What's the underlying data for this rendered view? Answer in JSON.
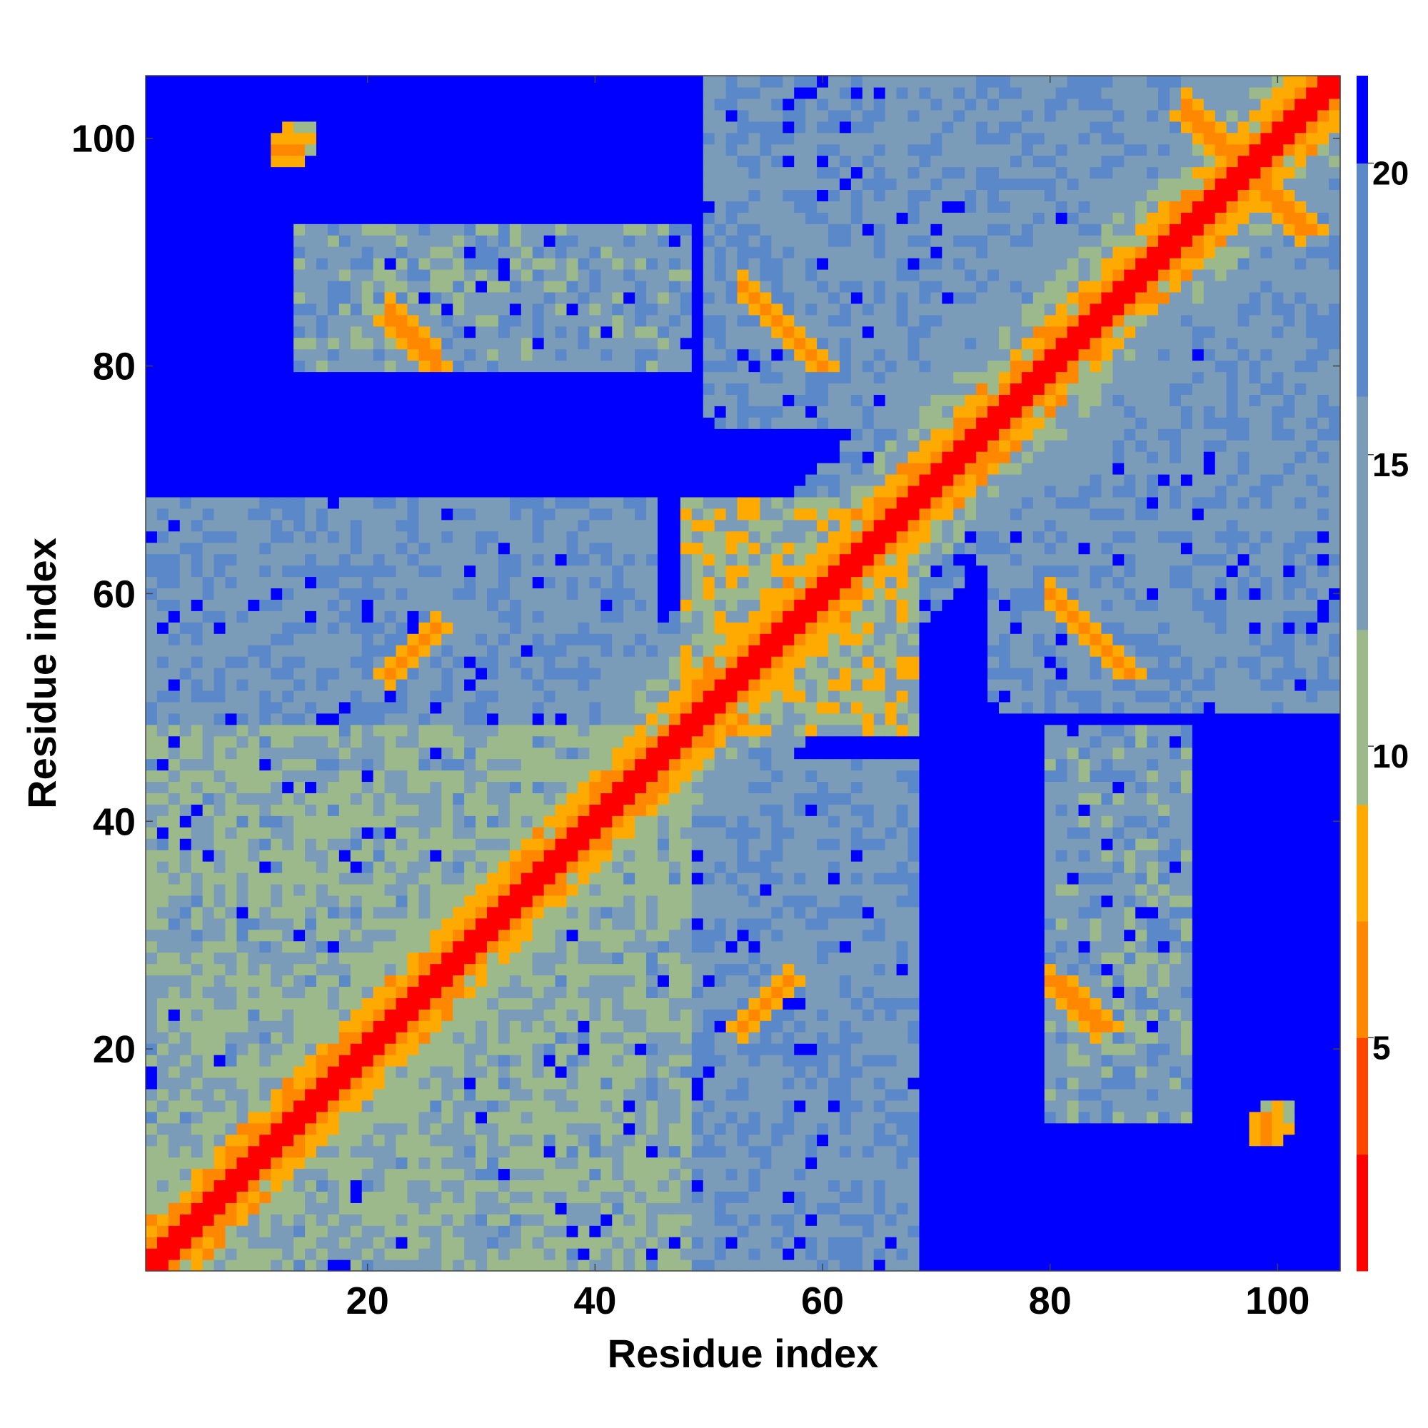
{
  "chart_data": {
    "type": "heatmap",
    "title": "",
    "xlabel": "Residue index",
    "ylabel": "Residue index",
    "n_residues": 105,
    "xlim": [
      1,
      105
    ],
    "ylim": [
      1,
      105
    ],
    "x_ticks": [
      20,
      40,
      60,
      80,
      100
    ],
    "y_ticks": [
      20,
      40,
      60,
      80,
      100
    ],
    "colorbar": {
      "ticks": [
        5,
        10,
        15,
        20
      ],
      "range": [
        1,
        21.5
      ],
      "colors": [
        "#ff0000",
        "#ff4400",
        "#ff8800",
        "#ffaa00",
        "#9bb98a",
        "#7a9cb8",
        "#5b88c8",
        "#0000ff"
      ],
      "boundaries": [
        1,
        3,
        5,
        7,
        9,
        12,
        16,
        20,
        21.5
      ],
      "placement": "right"
    },
    "value_description": "pairwise residue distance; symmetric matrix",
    "contact_bands": [
      {
        "cx": 13,
        "cy": 99,
        "w": 1.0,
        "len": 3,
        "dir": "h",
        "value": 5.5
      },
      {
        "cx": 24,
        "cy": 82,
        "w": 1.2,
        "len": 5,
        "dir": "anti",
        "value": 5.5
      },
      {
        "cx": 24,
        "cy": 55,
        "w": 1.2,
        "len": 5,
        "dir": "par",
        "value": 5.8
      },
      {
        "cx": 55,
        "cy": 24,
        "w": 1.2,
        "len": 5,
        "dir": "par",
        "value": 5.8
      },
      {
        "cx": 57,
        "cy": 83,
        "w": 1.2,
        "len": 6,
        "dir": "anti",
        "value": 5.5
      },
      {
        "cx": 84,
        "cy": 56,
        "w": 1.2,
        "len": 6,
        "dir": "anti",
        "value": 5.5
      },
      {
        "cx": 83,
        "cy": 24,
        "w": 1.2,
        "len": 5,
        "dir": "anti",
        "value": 5.5
      },
      {
        "cx": 94,
        "cy": 100,
        "w": 1.2,
        "len": 5,
        "dir": "anti",
        "value": 6
      },
      {
        "cx": 101,
        "cy": 94,
        "w": 1.2,
        "len": 5,
        "dir": "anti",
        "value": 6
      },
      {
        "cx": 100,
        "cy": 14,
        "w": 0.8,
        "len": 3,
        "dir": "v",
        "value": 7
      }
    ],
    "domains": [
      {
        "x": [
          1,
          48
        ],
        "y": [
          1,
          48
        ],
        "value": 13
      },
      {
        "x": [
          48,
          68
        ],
        "y": [
          48,
          68
        ],
        "value": 12
      },
      {
        "x": [
          66,
          105
        ],
        "y": [
          66,
          105
        ],
        "value": 16
      },
      {
        "x": [
          80,
          92
        ],
        "y": [
          14,
          48
        ],
        "value": 15
      },
      {
        "x": [
          14,
          48
        ],
        "y": [
          80,
          92
        ],
        "value": 15
      },
      {
        "x": [
          50,
          66
        ],
        "y": [
          75,
          105
        ],
        "value": 17
      },
      {
        "x": [
          75,
          105
        ],
        "y": [
          50,
          66
        ],
        "value": 17
      },
      {
        "x": [
          1,
          45
        ],
        "y": [
          48,
          68
        ],
        "value": 16
      },
      {
        "x": [
          48,
          68
        ],
        "y": [
          1,
          45
        ],
        "value": 16
      }
    ]
  }
}
